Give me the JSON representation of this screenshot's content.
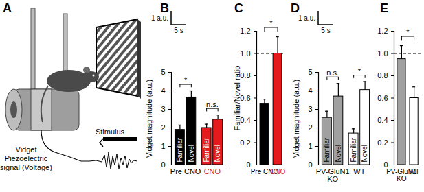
{
  "diagram": {
    "title": "A",
    "device_label": [
      "Vidget",
      "Piezoelectric",
      "signal (Voltage)"
    ],
    "stimulus_label": "Stimulus"
  },
  "chart_data": [
    {
      "type": "bar",
      "title": "B",
      "y_label": "Vidget magnitude (a.u.)",
      "categories": [
        "Familiar",
        "Novel",
        "Familiar",
        "Novel"
      ],
      "groups": [
        "Pre CNO",
        "Pre CNO",
        "CNO",
        "CNO"
      ],
      "group_colors": [
        "#000000",
        "#e41a1c"
      ],
      "values": [
        1.9,
        3.65,
        2.0,
        2.45
      ],
      "errors": [
        0.25,
        0.35,
        0.2,
        0.25
      ],
      "colors": [
        "#000000",
        "#000000",
        "#e41a1c",
        "#e41a1c"
      ],
      "ylim": [
        0,
        5
      ],
      "yticks": [
        0,
        1,
        2,
        3,
        4,
        5
      ],
      "annotations": [
        {
          "text": "*",
          "bars": [
            0,
            1
          ]
        },
        {
          "text": "n.s.",
          "bars": [
            2,
            3
          ]
        }
      ],
      "scale_bar": {
        "y_label": "1 a.u.",
        "x_label": "5 s"
      }
    },
    {
      "type": "bar",
      "title": "C",
      "y_label": "Familiar/Novel ratio",
      "categories": [
        "Pre CNO",
        "CNO"
      ],
      "category_colors": [
        "#000000",
        "#e41a1c"
      ],
      "values": [
        0.55,
        1.0
      ],
      "errors": [
        0.04,
        0.15
      ],
      "colors": [
        "#000000",
        "#e41a1c"
      ],
      "ylim": [
        0,
        1.2
      ],
      "yticks": [
        0,
        0.2,
        0.4,
        0.6,
        0.8,
        {
          "value": 1,
          "label": "1.0"
        },
        1.2
      ],
      "reference": 1,
      "annotations": [
        {
          "text": "*",
          "bars": [
            0,
            1
          ]
        }
      ]
    },
    {
      "type": "bar",
      "title": "D",
      "y_label": "Vidget magnitude (a.u.)",
      "categories": [
        "Familiar",
        "Novel",
        "Familiar",
        "Novel"
      ],
      "groups": [
        "PV-GluN1 KO",
        "PV-GluN1 KO",
        "WT",
        "WT"
      ],
      "group_colors": [
        "#000000",
        "#000000"
      ],
      "values": [
        2.55,
        3.7,
        1.7,
        4.05
      ],
      "errors": [
        0.35,
        0.7,
        0.25,
        0.45
      ],
      "colors": [
        "#a0a0a0",
        "#a0a0a0",
        "#ffffff",
        "#ffffff"
      ],
      "ylim": [
        0,
        5
      ],
      "yticks": [
        0,
        1,
        2,
        3,
        4,
        5
      ],
      "annotations": [
        {
          "text": "n.s.",
          "bars": [
            0,
            1
          ]
        },
        {
          "text": "*",
          "bars": [
            2,
            3
          ]
        }
      ],
      "scale_bar": {
        "y_label": "1 a.u.",
        "x_label": "5 s"
      }
    },
    {
      "type": "bar",
      "title": "E",
      "categories": [
        "PV-GluN1 KO",
        "WT"
      ],
      "category_colors": [
        "#000000",
        "#000000"
      ],
      "values": [
        0.95,
        0.6
      ],
      "errors": [
        0.12,
        0.1
      ],
      "colors": [
        "#a0a0a0",
        "#ffffff"
      ],
      "ylim": [
        0,
        1.2
      ],
      "yticks": [
        0,
        0.2,
        0.4,
        0.6,
        0.8,
        {
          "value": 1,
          "label": "1.0"
        },
        1.2
      ],
      "reference": 1,
      "annotations": [
        {
          "text": "*",
          "bars": [
            0,
            1
          ]
        }
      ]
    }
  ]
}
